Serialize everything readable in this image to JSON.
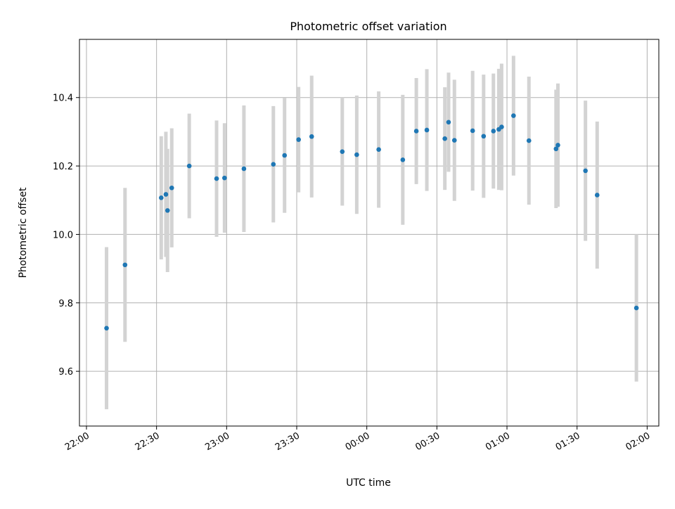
{
  "colors": {
    "point": "#1f77b4",
    "errorbar": "#d3d3d3",
    "grid": "#b0b0b0",
    "axes": "#000000",
    "background": "#ffffff"
  },
  "chart_data": {
    "type": "scatter",
    "title": "Photometric offset variation",
    "xlabel": "UTC time",
    "ylabel": "Photometric offset",
    "x_axis_type": "time",
    "xlim": [
      "21:57",
      "02:05"
    ],
    "ylim": [
      9.44,
      10.57
    ],
    "grid": true,
    "legend": "none",
    "x_ticks": [
      "22:00",
      "22:30",
      "23:00",
      "23:30",
      "00:00",
      "00:30",
      "01:00",
      "01:30",
      "02:00"
    ],
    "y_ticks": [
      "9.6",
      "9.8",
      "10.0",
      "10.2",
      "10.4"
    ],
    "series": [
      {
        "error_bars": "symmetric",
        "points": [
          {
            "time": "22:08.6",
            "y": 9.726,
            "err": 0.237
          },
          {
            "time": "22:16.5",
            "y": 9.911,
            "err": 0.225
          },
          {
            "time": "22:32.0",
            "y": 10.107,
            "err": 0.18
          },
          {
            "time": "22:34.0",
            "y": 10.117,
            "err": 0.183
          },
          {
            "time": "22:34.7",
            "y": 10.07,
            "err": 0.18
          },
          {
            "time": "22:36.5",
            "y": 10.136,
            "err": 0.174
          },
          {
            "time": "22:44.0",
            "y": 10.2,
            "err": 0.153
          },
          {
            "time": "22:55.7",
            "y": 10.163,
            "err": 0.17
          },
          {
            "time": "22:59.1",
            "y": 10.165,
            "err": 0.16
          },
          {
            "time": "23:07.4",
            "y": 10.192,
            "err": 0.185
          },
          {
            "time": "23:20.0",
            "y": 10.205,
            "err": 0.17
          },
          {
            "time": "23:24.8",
            "y": 10.231,
            "err": 0.168
          },
          {
            "time": "23:30.8",
            "y": 10.277,
            "err": 0.154
          },
          {
            "time": "23:36.4",
            "y": 10.286,
            "err": 0.178
          },
          {
            "time": "23:49.5",
            "y": 10.242,
            "err": 0.158
          },
          {
            "time": "23:55.7",
            "y": 10.233,
            "err": 0.173
          },
          {
            "time": "00:05.1",
            "y": 10.248,
            "err": 0.17
          },
          {
            "time": "00:15.4",
            "y": 10.218,
            "err": 0.19
          },
          {
            "time": "00:21.2",
            "y": 10.302,
            "err": 0.155
          },
          {
            "time": "00:25.7",
            "y": 10.305,
            "err": 0.178
          },
          {
            "time": "00:33.4",
            "y": 10.28,
            "err": 0.15
          },
          {
            "time": "00:35.0",
            "y": 10.328,
            "err": 0.145
          },
          {
            "time": "00:37.5",
            "y": 10.275,
            "err": 0.177
          },
          {
            "time": "00:45.3",
            "y": 10.303,
            "err": 0.175
          },
          {
            "time": "00:50.0",
            "y": 10.287,
            "err": 0.18
          },
          {
            "time": "00:54.2",
            "y": 10.302,
            "err": 0.168
          },
          {
            "time": "00:56.5",
            "y": 10.307,
            "err": 0.177
          },
          {
            "time": "00:57.7",
            "y": 10.314,
            "err": 0.185
          },
          {
            "time": "01:02.8",
            "y": 10.347,
            "err": 0.175
          },
          {
            "time": "01:09.4",
            "y": 10.274,
            "err": 0.187
          },
          {
            "time": "01:21.0",
            "y": 10.25,
            "err": 0.173
          },
          {
            "time": "01:21.8",
            "y": 10.261,
            "err": 0.18
          },
          {
            "time": "01:33.6",
            "y": 10.186,
            "err": 0.205
          },
          {
            "time": "01:38.6",
            "y": 10.115,
            "err": 0.215
          },
          {
            "time": "01:55.4",
            "y": 9.785,
            "err": 0.215
          }
        ]
      }
    ]
  }
}
